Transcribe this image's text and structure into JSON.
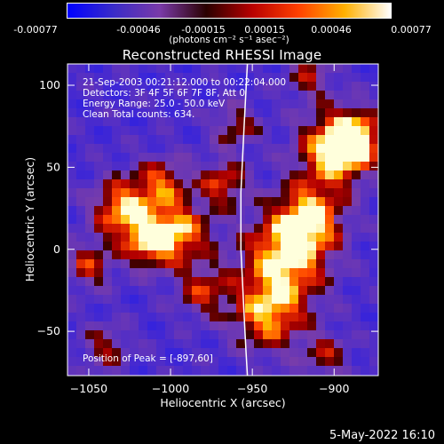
{
  "colorbar": {
    "tick_labels": [
      "-0.00077",
      "-0.00046",
      "-0.00015",
      "0.00015",
      "0.00046",
      "0.00077"
    ],
    "units": "(photons cm⁻² s⁻¹ asec⁻²)",
    "colors": [
      "#0000ff",
      "#3a2cc8",
      "#7a3aa8",
      "#2a0000",
      "#b80000",
      "#ff4000",
      "#ffb000",
      "#ffffff"
    ]
  },
  "annotations": {
    "time_range": "21-Sep-2003 00:21:12.000 to 00:22:04.000",
    "detectors": "Detectors: 3F 4F 5F 6F 7F 8F, Att 0",
    "energy_range": "Energy Range: 25.0 - 50.0 keV",
    "clean_counts": "Clean     Total counts: 634.",
    "peak_position": "Position of Peak = [-897,60]"
  },
  "footer": {
    "date": "5-May-2022 16:10"
  },
  "chart_data": {
    "type": "heatmap",
    "title": "Reconstructed RHESSI Image",
    "xlabel": "Heliocentric X (arcsec)",
    "ylabel": "Heliocentric Y (arcsec)",
    "xlim": [
      -1063,
      -873
    ],
    "ylim": [
      -77,
      113
    ],
    "xticks": [
      -1050,
      -1000,
      -950,
      -900
    ],
    "yticks": [
      -50,
      0,
      50,
      100
    ],
    "xtick_labels": [
      "−1050",
      "−1000",
      "−950",
      "−900"
    ],
    "ytick_labels": [
      "−50",
      "0",
      "50",
      "100"
    ],
    "value_range": [
      -0.00077,
      0.00077
    ],
    "grid": false,
    "peak": {
      "x": -897,
      "y": 60
    },
    "limb_curve": [
      {
        "x": -953,
        "y": 113
      },
      {
        "x": -954,
        "y": 95
      },
      {
        "x": -955,
        "y": 75
      },
      {
        "x": -956,
        "y": 55
      },
      {
        "x": -957,
        "y": 35
      },
      {
        "x": -957,
        "y": 15
      },
      {
        "x": -957,
        "y": 0
      },
      {
        "x": -956,
        "y": -20
      },
      {
        "x": -955,
        "y": -40
      },
      {
        "x": -954,
        "y": -60
      },
      {
        "x": -953,
        "y": -77
      }
    ]
  }
}
